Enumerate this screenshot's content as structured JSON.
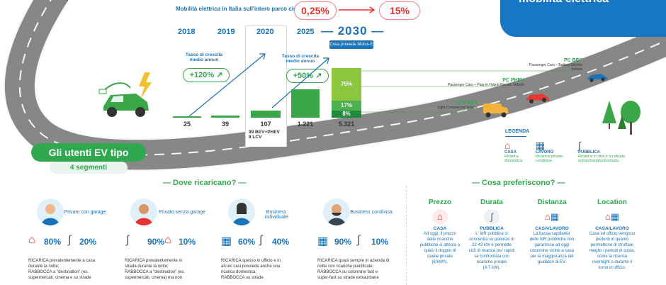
{
  "header": {
    "text": "Mobilità elettrica in Italia sull'intero parco circolante:",
    "pct_now": "0,25%",
    "pct_future": "15%",
    "badge": "mobilità elettrica"
  },
  "timeline": {
    "years": [
      "2018",
      "2019",
      "2020",
      "2025",
      "— 2030 —"
    ],
    "motus_label": "Cosa prevede Motus-E",
    "values": [
      "25",
      "39",
      "107",
      "1.221",
      "5.321"
    ],
    "breakdown_2020_line1": "99 BEV+PHEV",
    "breakdown_2020_line2": "8  LCV",
    "growth": [
      {
        "label": "Tasso di crescita medio annuo",
        "value": "+120%"
      },
      {
        "label": "Tasso di crescita medio annuo",
        "value": "+50%"
      }
    ],
    "split_2030": [
      "75%",
      "17%",
      "8%"
    ],
    "split_2030_fraction": [
      0.75,
      0.17,
      0.08
    ]
  },
  "road": {
    "pc_bev": {
      "code": "PC BEV",
      "desc": "Passenger Cars – Battery Electric Vehicle"
    },
    "pc_phev": {
      "code": "PC PHEV",
      "desc": "Passenger Cars – Plug-in Hybrid Electric Vehicle"
    },
    "lcv_bev": {
      "code": "LCV BEV",
      "desc": "Light Commercial Vehicle"
    }
  },
  "legenda": {
    "title": "LEGENDA",
    "items": [
      {
        "name": "CASA",
        "desc": "Ricarica domestica",
        "icon": "house-icon"
      },
      {
        "name": "LAVORO",
        "desc": "Ricarica privato-condivisa",
        "icon": "workplace-icon"
      },
      {
        "name": "PUBBLICA",
        "desc": "Ricarica in città e su strada extraurbana/autostrada",
        "icon": "road-icon"
      }
    ]
  },
  "users": {
    "title": "Gli utenti EV tipo",
    "subtitle": "4 segmenti"
  },
  "where": {
    "title": "— Dove ricaricano? —",
    "segments": [
      {
        "label": "Privato con garage",
        "pct_a": "80%",
        "pct_b": "20%",
        "body": [
          "RICARICA prevalentemente a casa",
          "durante la notte;",
          "RABBOCCA a \"destination\" (es.",
          "supermercati, cinema e su strade"
        ]
      },
      {
        "label": "Privato senza garage",
        "pct_a": "90%",
        "pct_b": "10%",
        "body": [
          "RICARICA prevalentemente in",
          "strada durante la notte;",
          "RABBOCCA a \"destination\" (es.",
          "supermercati, cinema) ma non"
        ]
      },
      {
        "label": "Business individuale",
        "pct_a": "60%",
        "pct_b": "40%",
        "body": [
          "RICARICA spesso in ufficio e in",
          "alcuni casi possiede anche una",
          "ricarica domestica;",
          "RABBOCCA su strade"
        ]
      },
      {
        "label": "Business condivisa",
        "pct_a": "90%",
        "pct_b": "10%",
        "body": [
          "RICARICA quasi sempre in azienda di",
          "notte con ricariche pianificate;",
          "RABBOCCA su colonnine fast e",
          "super-fast su strade extraurbane"
        ]
      }
    ]
  },
  "prefer": {
    "title": "— Cosa preferiscono? —",
    "items": [
      {
        "title": "Prezzo",
        "cat": "CASA",
        "text": [
          "Ad oggi, il prezzo",
          "delle ricariche",
          "pubbliche si attesta a",
          "quasi il doppio di",
          "quelle private",
          "(€/kWh)."
        ]
      },
      {
        "title": "Durata",
        "cat": "PUBBLICA",
        "text": [
          "L' IdR pubblica si",
          "concentra su potenze di",
          "22-43 kW e permette",
          "cicli di ricarica piu' rapidi",
          "se confrontata con",
          "ricariche private",
          "(3-7 kW)."
        ]
      },
      {
        "title": "Distanza",
        "cat": "CASA/LAVORO",
        "text": [
          "La bassa capillarita'",
          "delle IdR pubbliche non",
          "garantisce ad oggi",
          "colonnine vicine a casa",
          "per la maggioranza dei",
          "guidatori di EV."
        ]
      },
      {
        "title": "Location",
        "cat": "CASA/LAVORO",
        "text": [
          "Casa ed ufficio vengono",
          "preferiti in quanto",
          "permettono di sfruttare",
          "meglio i periodi di sosta,",
          "come la ricarica",
          "overnight o durante il",
          "turno in ufficio."
        ]
      }
    ]
  },
  "colors": {
    "blue": "#1a73b8",
    "green": "#2fa84f",
    "red": "#e8322f",
    "road": "#5a5a5a"
  }
}
